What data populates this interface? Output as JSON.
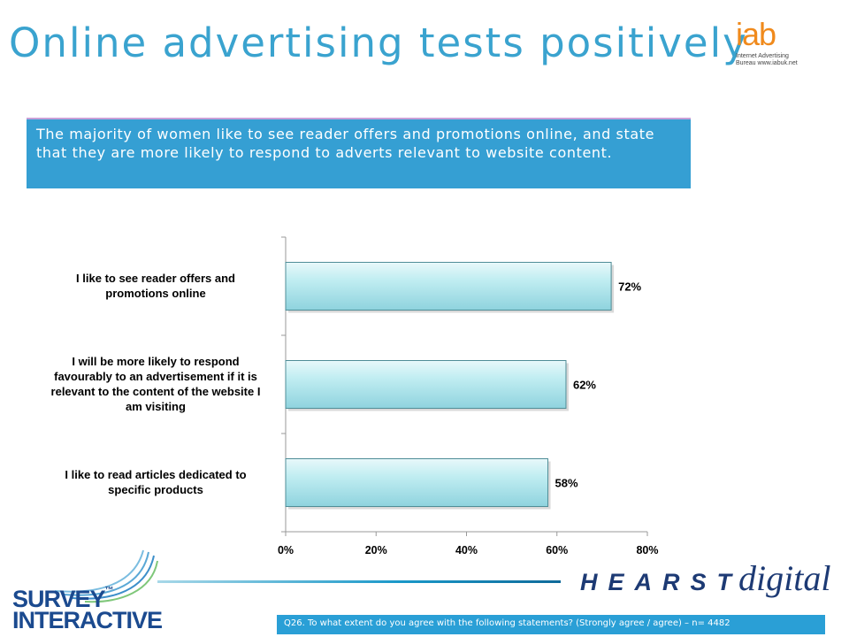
{
  "header": {
    "title": "Online advertising tests positively"
  },
  "iab_logo": {
    "wordmark": "iab",
    "line1": "Internet Advertising",
    "line2": "Bureau www.iabuk.net"
  },
  "banner": {
    "text": "The majority of women like to see reader offers and promotions online, and state that they are more likely to respond to adverts relevant to website content."
  },
  "colors": {
    "title": "#3aa3cf",
    "banner": "#359fd3",
    "bar_fill": "#aee2ea",
    "bar_stroke": "#4f8d97",
    "footer": "#2a9fd6"
  },
  "chart_data": {
    "type": "bar",
    "orientation": "horizontal",
    "categories": [
      "I like to see reader offers and promotions online",
      "I will be more likely to respond favourably to an advertisement if it is relevant to the content of the website I am visiting",
      "I like to read articles dedicated to specific products"
    ],
    "category_lines": [
      [
        "I like to see reader offers and",
        "promotions online"
      ],
      [
        "I will be more likely to respond",
        "favourably to an advertisement if it is",
        "relevant to the content of the website I",
        "am visiting"
      ],
      [
        "I like to read articles dedicated to",
        "specific products"
      ]
    ],
    "values": [
      72,
      62,
      58
    ],
    "data_labels": [
      "72%",
      "62%",
      "58%"
    ],
    "xlim": [
      0,
      80
    ],
    "xticks": [
      0,
      20,
      40,
      60,
      80
    ],
    "xtick_labels": [
      "0%",
      "20%",
      "40%",
      "60%",
      "80%"
    ],
    "grid": false,
    "legend": "none"
  },
  "brand": {
    "survey_line1": "SURVEY",
    "survey_tm": "™",
    "survey_line2": "INTERACTIVE",
    "hearst": "HEARST",
    "digital": "digital"
  },
  "footer": {
    "question": "Q26. To what extent do you agree with the following statements? (Strongly agree / agree) – n= 4482"
  }
}
